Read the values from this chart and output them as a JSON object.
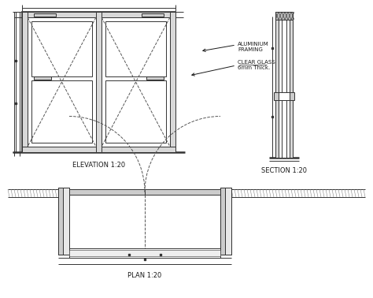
{
  "bg_color": "#ffffff",
  "line_color": "#333333",
  "dashed_color": "#555555",
  "text_color": "#1a1a1a",
  "title_elev": "ELEVATION 1:20",
  "title_sect": "SECTION 1:20",
  "title_plan": "PLAN 1:20",
  "label_alum": "ALUMINIUM\nFRAMING",
  "label_glass": "CLEAR GLASS\n6mm Thick.",
  "font_size_label": 5.0,
  "font_size_title": 6.0
}
